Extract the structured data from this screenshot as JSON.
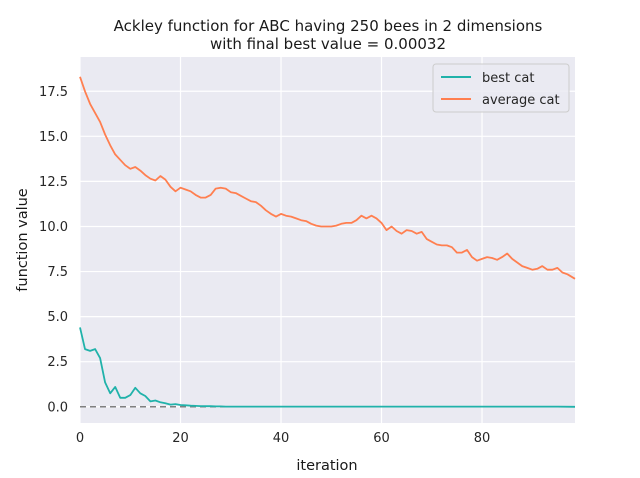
{
  "chart_data": {
    "type": "line",
    "title_line1": "Ackley function for ABC having 250 bees in 2 dimensions",
    "title_line2": "with final best value = 0.00032",
    "xlabel": "iteration",
    "ylabel": "function value",
    "xlim": [
      0,
      98.5
    ],
    "ylim": [
      -0.9,
      19.4
    ],
    "x_ticks": [
      0,
      20,
      40,
      60,
      80
    ],
    "y_ticks": [
      0.0,
      2.5,
      5.0,
      7.5,
      10.0,
      12.5,
      15.0,
      17.5
    ],
    "x_tick_labels": [
      "0",
      "20",
      "40",
      "60",
      "80"
    ],
    "y_tick_labels": [
      "0.0",
      "2.5",
      "5.0",
      "7.5",
      "10.0",
      "12.5",
      "15.0",
      "17.5"
    ],
    "grid": true,
    "legend_position": "top-right",
    "reference_line": {
      "y": 0,
      "style": "dashed",
      "color": "#808080"
    },
    "series": [
      {
        "name": "best cat",
        "color": "#20b2aa",
        "x": [
          0,
          1,
          2,
          3,
          4,
          5,
          6,
          7,
          8,
          9,
          10,
          11,
          12,
          13,
          14,
          15,
          16,
          17,
          18,
          19,
          20,
          21,
          22,
          23,
          24,
          25,
          26,
          27,
          28,
          29,
          30,
          35,
          40,
          45,
          50,
          55,
          60,
          65,
          70,
          75,
          80,
          85,
          90,
          95,
          98.5
        ],
        "y": [
          4.4,
          3.2,
          3.1,
          3.2,
          2.7,
          1.35,
          0.75,
          1.1,
          0.5,
          0.5,
          0.65,
          1.05,
          0.75,
          0.6,
          0.3,
          0.35,
          0.25,
          0.2,
          0.12,
          0.15,
          0.1,
          0.08,
          0.06,
          0.05,
          0.04,
          0.03,
          0.03,
          0.02,
          0.02,
          0.01,
          0.01,
          0.01,
          0.01,
          0.01,
          0.01,
          0.01,
          0.01,
          0.01,
          0.01,
          0.01,
          0.01,
          0.01,
          0.01,
          0.01,
          0.0
        ]
      },
      {
        "name": "average cat",
        "color": "#ff7f50",
        "x": [
          0,
          1,
          2,
          3,
          4,
          5,
          6,
          7,
          8,
          9,
          10,
          11,
          12,
          13,
          14,
          15,
          16,
          17,
          18,
          19,
          20,
          21,
          22,
          23,
          24,
          25,
          26,
          27,
          28,
          29,
          30,
          31,
          32,
          33,
          34,
          35,
          36,
          37,
          38,
          39,
          40,
          41,
          42,
          43,
          44,
          45,
          46,
          47,
          48,
          49,
          50,
          51,
          52,
          53,
          54,
          55,
          56,
          57,
          58,
          59,
          60,
          61,
          62,
          63,
          64,
          65,
          66,
          67,
          68,
          69,
          70,
          71,
          72,
          73,
          74,
          75,
          76,
          77,
          78,
          79,
          80,
          81,
          82,
          83,
          84,
          85,
          86,
          87,
          88,
          89,
          90,
          91,
          92,
          93,
          94,
          95,
          96,
          97,
          98.5
        ],
        "y": [
          18.3,
          17.5,
          16.8,
          16.3,
          15.8,
          15.1,
          14.5,
          14.0,
          13.7,
          13.4,
          13.2,
          13.3,
          13.1,
          12.85,
          12.65,
          12.55,
          12.8,
          12.6,
          12.2,
          11.95,
          12.15,
          12.05,
          11.95,
          11.75,
          11.6,
          11.6,
          11.75,
          12.1,
          12.15,
          12.1,
          11.9,
          11.85,
          11.7,
          11.55,
          11.4,
          11.35,
          11.15,
          10.9,
          10.7,
          10.55,
          10.7,
          10.6,
          10.55,
          10.45,
          10.35,
          10.3,
          10.15,
          10.05,
          10.0,
          10.0,
          10.0,
          10.05,
          10.15,
          10.2,
          10.2,
          10.35,
          10.6,
          10.45,
          10.6,
          10.45,
          10.2,
          9.8,
          10.0,
          9.75,
          9.6,
          9.8,
          9.75,
          9.6,
          9.7,
          9.3,
          9.15,
          9.0,
          8.95,
          8.95,
          8.85,
          8.55,
          8.55,
          8.7,
          8.3,
          8.1,
          8.2,
          8.3,
          8.25,
          8.15,
          8.3,
          8.5,
          8.2,
          8.0,
          7.8,
          7.7,
          7.6,
          7.65,
          7.8,
          7.6,
          7.6,
          7.7,
          7.45,
          7.35,
          7.1
        ]
      }
    ]
  }
}
